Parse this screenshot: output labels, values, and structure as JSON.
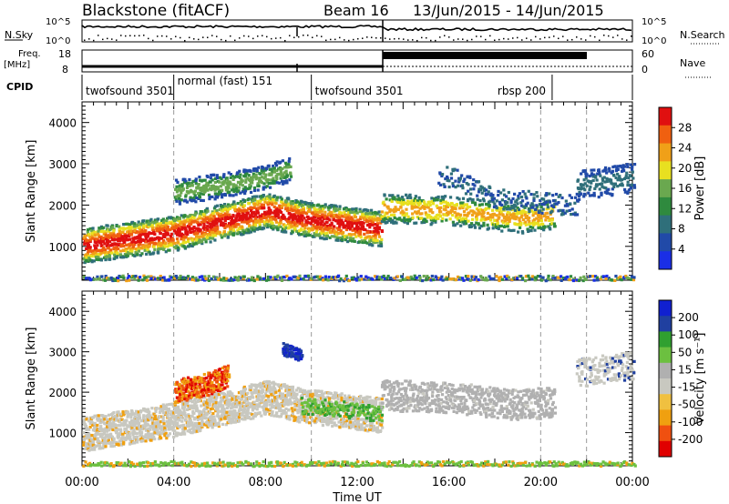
{
  "header": {
    "station": "Blackstone (fitACF)",
    "beam": "Beam 16",
    "date_range": "13/Jun/2015 - 14/Jun/2015"
  },
  "sky_panel": {
    "left_label": "N.Sky",
    "right_label": "N.Search",
    "left_ticks": [
      "10^5",
      "10^0"
    ],
    "right_ticks": [
      "10^5",
      "10^0"
    ]
  },
  "freq_panel": {
    "left_label_1": "Freq.",
    "left_label_2": "[MHz]",
    "right_label": "Nave",
    "left_ticks": [
      "18",
      "8"
    ],
    "right_ticks": [
      "60",
      "0"
    ]
  },
  "cpid": {
    "label": "CPID",
    "segments": [
      {
        "name": "twofsound 3501",
        "start": 0,
        "end": 4
      },
      {
        "name": "normal (fast) 151",
        "start": 4,
        "end": 10
      },
      {
        "name": "twofsound 3501",
        "start": 10,
        "end": 20.5
      },
      {
        "name": "rbsp 200",
        "start": 20.5,
        "end": 24
      }
    ]
  },
  "colors": {
    "power": [
      "#1a2ee6",
      "#214aa8",
      "#2f6f7a",
      "#2f8a3e",
      "#6aa84f",
      "#e8e020",
      "#f0a018",
      "#f06010",
      "#e01010"
    ],
    "velocity": [
      "#e00000",
      "#f05010",
      "#f0a010",
      "#f0c040",
      "#c8c8c0",
      "#b0b0b0",
      "#6cc040",
      "#30a030",
      "#2040a0",
      "#1020d0"
    ]
  },
  "chart_data": [
    {
      "type": "heatmap",
      "name": "power",
      "ylabel": "Slant Range [km]",
      "xlabel": "",
      "x_ticks": [
        "00:00",
        "04:00",
        "08:00",
        "12:00",
        "16:00",
        "20:00",
        "00:00"
      ],
      "xlim": [
        0,
        24
      ],
      "ylim": [
        180,
        4500
      ],
      "y_ticks": [
        1000,
        2000,
        3000,
        4000
      ],
      "colorbar": {
        "label": "Power [dB]",
        "ticks": [
          4,
          8,
          12,
          16,
          20,
          24,
          28
        ],
        "range": [
          0,
          32
        ]
      },
      "bands": [
        {
          "x": [
            0,
            4,
            8,
            9.5,
            13
          ],
          "y": [
            1050,
            1350,
            1900,
            1700,
            1450
          ],
          "level": "high"
        },
        {
          "x": [
            13,
            16,
            19,
            20.5
          ],
          "y": [
            1900,
            1900,
            1650,
            1750
          ],
          "level": "mid"
        },
        {
          "x": [
            21.5,
            24
          ],
          "y": [
            2500,
            2700
          ],
          "level": "low"
        }
      ]
    },
    {
      "type": "heatmap",
      "name": "velocity",
      "ylabel": "Slant Range [km]",
      "xlabel": "Time UT",
      "x_ticks": [
        "00:00",
        "04:00",
        "08:00",
        "12:00",
        "16:00",
        "20:00",
        "00:00"
      ],
      "xlim": [
        0,
        24
      ],
      "ylim": [
        180,
        4500
      ],
      "y_ticks": [
        1000,
        2000,
        3000,
        4000
      ],
      "colorbar": {
        "label": "Velocity [m s⁻¹]",
        "ticks": [
          200,
          100,
          50,
          15,
          -15,
          -50,
          -100,
          -200
        ]
      }
    }
  ]
}
